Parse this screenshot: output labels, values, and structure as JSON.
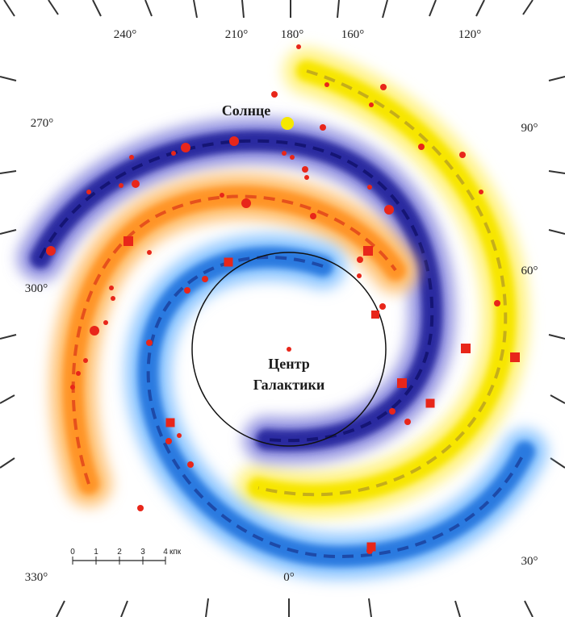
{
  "angles": {
    "a240": "240°",
    "a210": "210°",
    "a180": "180°",
    "a160": "160°",
    "a120": "120°",
    "a270": "270°",
    "a90": "90°",
    "a300": "300°",
    "a60": "60°",
    "a330": "330°",
    "a0": "0°",
    "a30": "30°"
  },
  "sun": "Солнце",
  "center": {
    "line1": "Центр",
    "line2": "Галактики"
  },
  "scale": {
    "ticks": [
      "0",
      "1",
      "2",
      "3",
      "4"
    ],
    "unit": "кпк"
  }
}
